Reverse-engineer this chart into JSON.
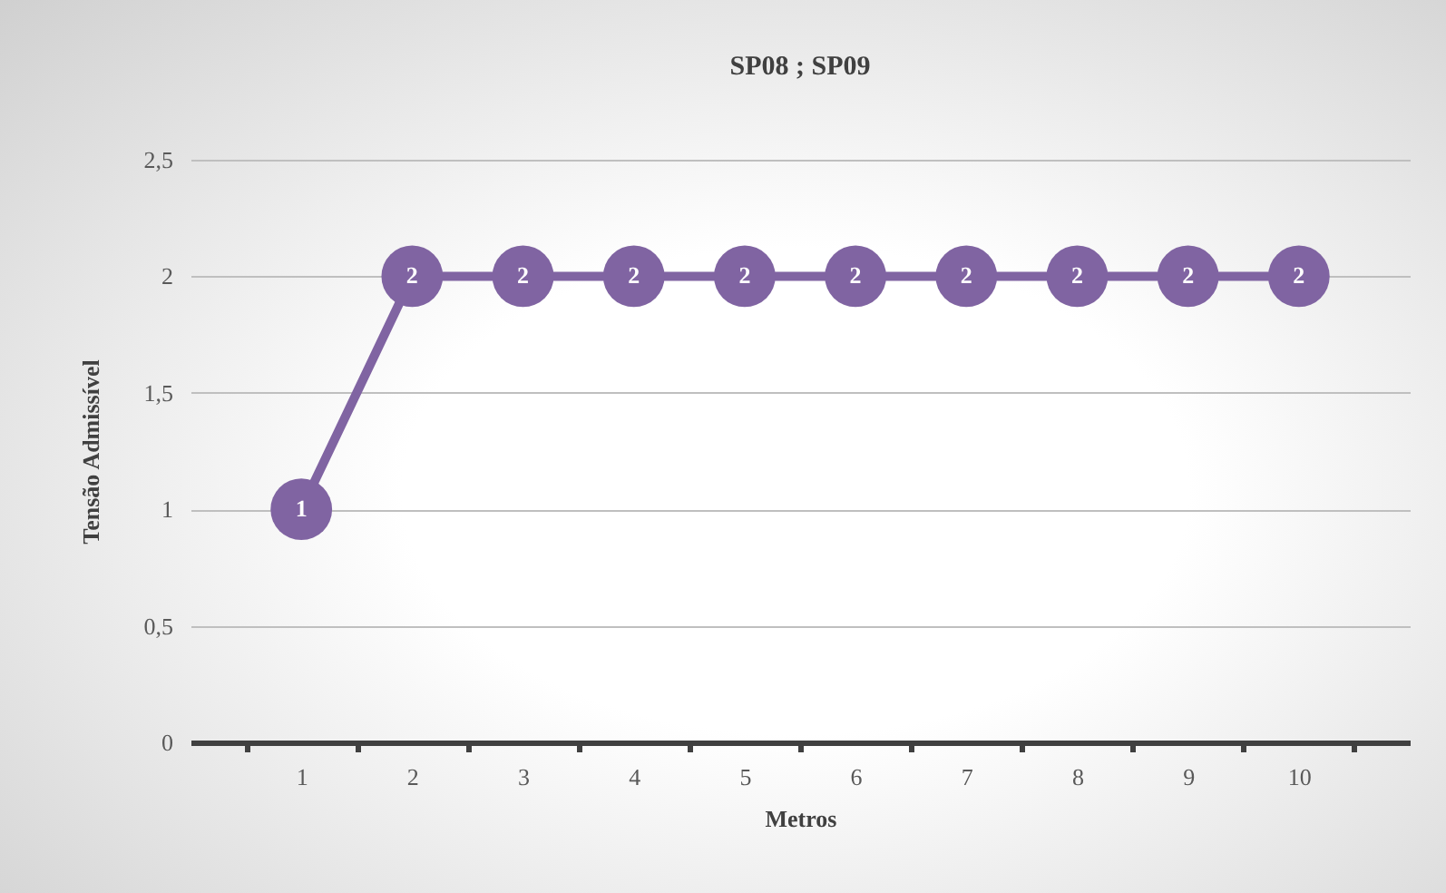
{
  "chart_data": {
    "type": "line",
    "title": "SP08 ; SP09",
    "xlabel": "Metros",
    "ylabel": "Tensão Admissível",
    "categories": [
      "1",
      "2",
      "3",
      "4",
      "5",
      "6",
      "7",
      "8",
      "9",
      "10"
    ],
    "series": [
      {
        "color": "#8064a2",
        "values": [
          1,
          2,
          2,
          2,
          2,
          2,
          2,
          2,
          2,
          2
        ]
      }
    ],
    "ylim": [
      0,
      2.5
    ],
    "yticks": [
      0,
      {
        "value": 0.5,
        "label": "0,5"
      },
      1,
      {
        "value": 1.5,
        "label": "1,5"
      },
      2,
      {
        "value": 2.5,
        "label": "2,5"
      }
    ],
    "grid": "y",
    "marker": "circle",
    "line_style": "solid",
    "data_labels": true,
    "legend": false
  }
}
